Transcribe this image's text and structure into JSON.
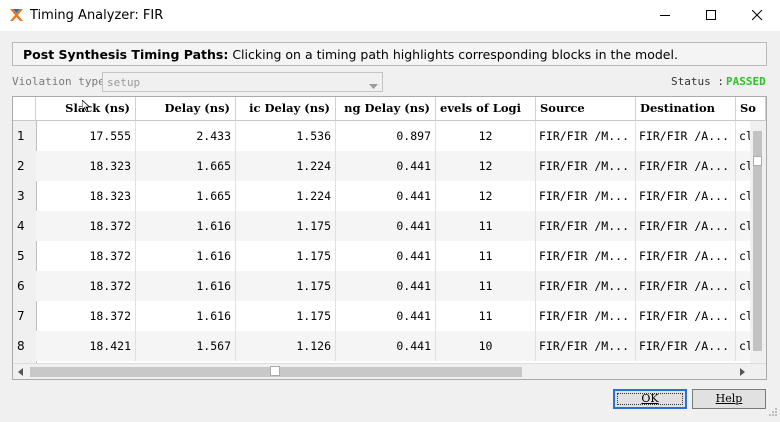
{
  "window": {
    "title": "Timing Analyzer: FIR"
  },
  "banner": {
    "bold": "Post Synthesis Timing Paths:",
    "text": " Clicking on a timing path highlights corresponding blocks in the model."
  },
  "violation": {
    "label": "Violation type",
    "value": "setup"
  },
  "status": {
    "label": "Status :",
    "value": "PASSED",
    "color": "#2fbf2f"
  },
  "table": {
    "headers": [
      "Slack (ns)",
      "Delay (ns)",
      "ic Delay (ns)",
      "ng Delay (ns)",
      "evels of Logi",
      "Source",
      "Destination",
      "So"
    ],
    "rows": [
      {
        "n": "1",
        "slack": "17.555",
        "delay": "2.433",
        "logic": "1.536",
        "routing": "0.897",
        "levels": "12",
        "source": "FIR/FIR /M...",
        "dest": "FIR/FIR /A...",
        "so": "cl"
      },
      {
        "n": "2",
        "slack": "18.323",
        "delay": "1.665",
        "logic": "1.224",
        "routing": "0.441",
        "levels": "12",
        "source": "FIR/FIR /M...",
        "dest": "FIR/FIR /A...",
        "so": "cl"
      },
      {
        "n": "3",
        "slack": "18.323",
        "delay": "1.665",
        "logic": "1.224",
        "routing": "0.441",
        "levels": "12",
        "source": "FIR/FIR /M...",
        "dest": "FIR/FIR /A...",
        "so": "cl"
      },
      {
        "n": "4",
        "slack": "18.372",
        "delay": "1.616",
        "logic": "1.175",
        "routing": "0.441",
        "levels": "11",
        "source": "FIR/FIR /M...",
        "dest": "FIR/FIR /A...",
        "so": "cl"
      },
      {
        "n": "5",
        "slack": "18.372",
        "delay": "1.616",
        "logic": "1.175",
        "routing": "0.441",
        "levels": "11",
        "source": "FIR/FIR /M...",
        "dest": "FIR/FIR /A...",
        "so": "cl"
      },
      {
        "n": "6",
        "slack": "18.372",
        "delay": "1.616",
        "logic": "1.175",
        "routing": "0.441",
        "levels": "11",
        "source": "FIR/FIR /M...",
        "dest": "FIR/FIR /A...",
        "so": "cl"
      },
      {
        "n": "7",
        "slack": "18.372",
        "delay": "1.616",
        "logic": "1.175",
        "routing": "0.441",
        "levels": "11",
        "source": "FIR/FIR /M...",
        "dest": "FIR/FIR /A...",
        "so": "cl"
      },
      {
        "n": "8",
        "slack": "18.421",
        "delay": "1.567",
        "logic": "1.126",
        "routing": "0.441",
        "levels": "10",
        "source": "FIR/FIR /M...",
        "dest": "FIR/FIR /A...",
        "so": "cl"
      }
    ]
  },
  "buttons": {
    "ok": "OK",
    "help": "Help"
  },
  "icons": {
    "app": "matlab-x-logo-icon",
    "minimize": "minimize-icon",
    "maximize": "maximize-icon",
    "close": "close-icon"
  }
}
